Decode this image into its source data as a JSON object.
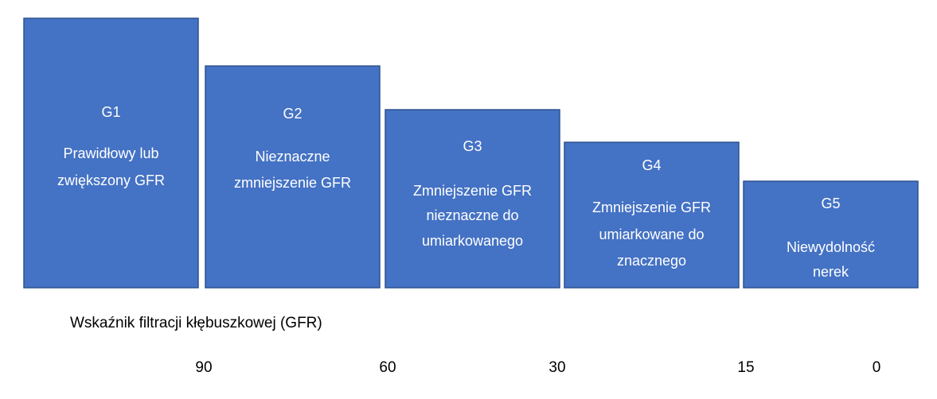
{
  "stages": [
    {
      "code": "G1",
      "lines": [
        "Prawidłowy lub",
        "zwiększony GFR"
      ]
    },
    {
      "code": "G2",
      "lines": [
        "Nieznaczne",
        "zmniejszenie GFR"
      ]
    },
    {
      "code": "G3",
      "lines": [
        "Zmniejszenie GFR",
        "nieznaczne do",
        "umiarkowanego"
      ]
    },
    {
      "code": "G4",
      "lines": [
        "Zmniejszenie GFR",
        "umiarkowane do",
        "znacznego"
      ]
    },
    {
      "code": "G5",
      "lines": [
        "Niewydolność",
        "nerek"
      ]
    }
  ],
  "axis_label": "Wskaźnik filtracji kłębuszkowej (GFR)",
  "boundaries": [
    "90",
    "60",
    "30",
    "15",
    "0"
  ]
}
